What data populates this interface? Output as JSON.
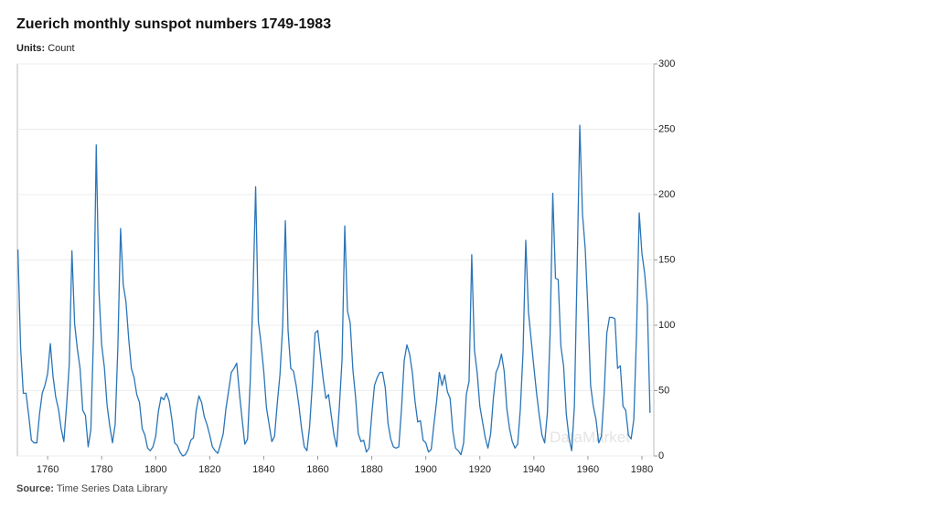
{
  "chart_data": {
    "type": "line",
    "title": "Zuerich monthly sunspot numbers 1749-1983",
    "units_label": "Units:",
    "units": "Count",
    "source_label": "Source:",
    "source": "Time Series Data Library",
    "watermark": "DataMarket",
    "x": [
      1749,
      1750,
      1751,
      1752,
      1753,
      1754,
      1755,
      1756,
      1757,
      1758,
      1759,
      1760,
      1761,
      1762,
      1763,
      1764,
      1765,
      1766,
      1767,
      1768,
      1769,
      1770,
      1771,
      1772,
      1773,
      1774,
      1775,
      1776,
      1777,
      1778,
      1779,
      1780,
      1781,
      1782,
      1783,
      1784,
      1785,
      1786,
      1787,
      1788,
      1789,
      1790,
      1791,
      1792,
      1793,
      1794,
      1795,
      1796,
      1797,
      1798,
      1799,
      1800,
      1801,
      1802,
      1803,
      1804,
      1805,
      1806,
      1807,
      1808,
      1809,
      1810,
      1811,
      1812,
      1813,
      1814,
      1815,
      1816,
      1817,
      1818,
      1819,
      1820,
      1821,
      1822,
      1823,
      1824,
      1825,
      1826,
      1827,
      1828,
      1829,
      1830,
      1831,
      1832,
      1833,
      1834,
      1835,
      1836,
      1837,
      1838,
      1839,
      1840,
      1841,
      1842,
      1843,
      1844,
      1845,
      1846,
      1847,
      1848,
      1849,
      1850,
      1851,
      1852,
      1853,
      1854,
      1855,
      1856,
      1857,
      1858,
      1859,
      1860,
      1861,
      1862,
      1863,
      1864,
      1865,
      1866,
      1867,
      1868,
      1869,
      1870,
      1871,
      1872,
      1873,
      1874,
      1875,
      1876,
      1877,
      1878,
      1879,
      1880,
      1881,
      1882,
      1883,
      1884,
      1885,
      1886,
      1887,
      1888,
      1889,
      1890,
      1891,
      1892,
      1893,
      1894,
      1895,
      1896,
      1897,
      1898,
      1899,
      1900,
      1901,
      1902,
      1903,
      1904,
      1905,
      1906,
      1907,
      1908,
      1909,
      1910,
      1911,
      1912,
      1913,
      1914,
      1915,
      1916,
      1917,
      1918,
      1919,
      1920,
      1921,
      1922,
      1923,
      1924,
      1925,
      1926,
      1927,
      1928,
      1929,
      1930,
      1931,
      1932,
      1933,
      1934,
      1935,
      1936,
      1937,
      1938,
      1939,
      1940,
      1941,
      1942,
      1943,
      1944,
      1945,
      1946,
      1947,
      1948,
      1949,
      1950,
      1951,
      1952,
      1953,
      1954,
      1955,
      1956,
      1957,
      1958,
      1959,
      1960,
      1961,
      1962,
      1963,
      1964,
      1965,
      1966,
      1967,
      1968,
      1969,
      1970,
      1971,
      1972,
      1973,
      1974,
      1975,
      1976,
      1977,
      1978,
      1979,
      1980,
      1981,
      1982,
      1983
    ],
    "series": [
      {
        "name": "Sunspots",
        "color": "#2a75b8",
        "values": [
          158,
          83,
          48,
          48,
          31,
          12,
          10,
          10,
          32,
          48,
          54,
          63,
          86,
          61,
          45,
          36,
          21,
          11,
          38,
          70,
          157,
          101,
          82,
          67,
          35,
          31,
          7,
          20,
          93,
          238,
          126,
          85,
          68,
          39,
          23,
          10,
          24,
          83,
          174,
          131,
          118,
          90,
          67,
          60,
          47,
          41,
          21,
          16,
          6,
          4,
          7,
          15,
          34,
          45,
          43,
          48,
          42,
          28,
          10,
          8,
          3,
          0,
          1,
          5,
          12,
          14,
          35,
          46,
          41,
          30,
          24,
          16,
          7,
          4,
          2,
          9,
          17,
          36,
          50,
          64,
          67,
          71,
          48,
          28,
          9,
          13,
          57,
          122,
          206,
          103,
          86,
          65,
          37,
          24,
          11,
          15,
          40,
          62,
          99,
          180,
          96,
          67,
          65,
          54,
          39,
          21,
          7,
          4,
          23,
          55,
          94,
          96,
          77,
          59,
          44,
          47,
          31,
          16,
          7,
          38,
          74,
          176,
          111,
          102,
          66,
          45,
          17,
          11,
          12,
          3,
          6,
          32,
          54,
          60,
          64,
          64,
          52,
          25,
          13,
          7,
          6,
          7,
          36,
          73,
          85,
          78,
          64,
          42,
          26,
          27,
          12,
          10,
          3,
          5,
          24,
          42,
          64,
          54,
          62,
          49,
          44,
          19,
          6,
          4,
          1,
          10,
          47,
          57,
          154,
          81,
          64,
          38,
          26,
          14,
          6,
          17,
          44,
          64,
          69,
          78,
          65,
          36,
          21,
          11,
          6,
          9,
          36,
          80,
          165,
          110,
          89,
          68,
          48,
          31,
          16,
          10,
          33,
          93,
          201,
          136,
          135,
          84,
          69,
          32,
          14,
          4,
          38,
          142,
          253,
          185,
          159,
          112,
          54,
          38,
          28,
          10,
          15,
          47,
          94,
          106,
          106,
          105,
          67,
          69,
          38,
          35,
          16,
          13,
          28,
          93,
          186,
          155,
          140,
          116,
          33
        ]
      }
    ],
    "xlim": [
      1748.8,
      1984.4
    ],
    "xticks": [
      1760,
      1780,
      1800,
      1820,
      1840,
      1860,
      1880,
      1900,
      1920,
      1940,
      1960,
      1980
    ],
    "ylim": [
      0,
      300
    ],
    "yticks": [
      0,
      50,
      100,
      150,
      200,
      250,
      300
    ],
    "grid": true
  }
}
